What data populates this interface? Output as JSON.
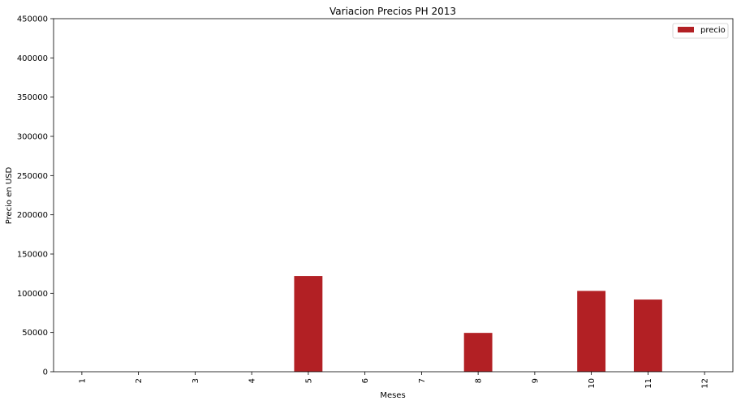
{
  "chart_data": {
    "type": "bar",
    "title": "Variacion Precios PH 2013",
    "xlabel": "Meses",
    "ylabel": "Precio en USD",
    "categories": [
      "1",
      "2",
      "3",
      "4",
      "5",
      "6",
      "7",
      "8",
      "9",
      "10",
      "11",
      "12"
    ],
    "series": [
      {
        "name": "precio",
        "color": "#b22024",
        "values": [
          0,
          0,
          0,
          0,
          122000,
          0,
          0,
          49500,
          0,
          103000,
          92000,
          0
        ]
      }
    ],
    "ylim": [
      0,
      450000
    ],
    "yticks": [
      0,
      50000,
      100000,
      150000,
      200000,
      250000,
      300000,
      350000,
      400000,
      450000
    ],
    "grid": false,
    "legend_position": "top-right"
  }
}
